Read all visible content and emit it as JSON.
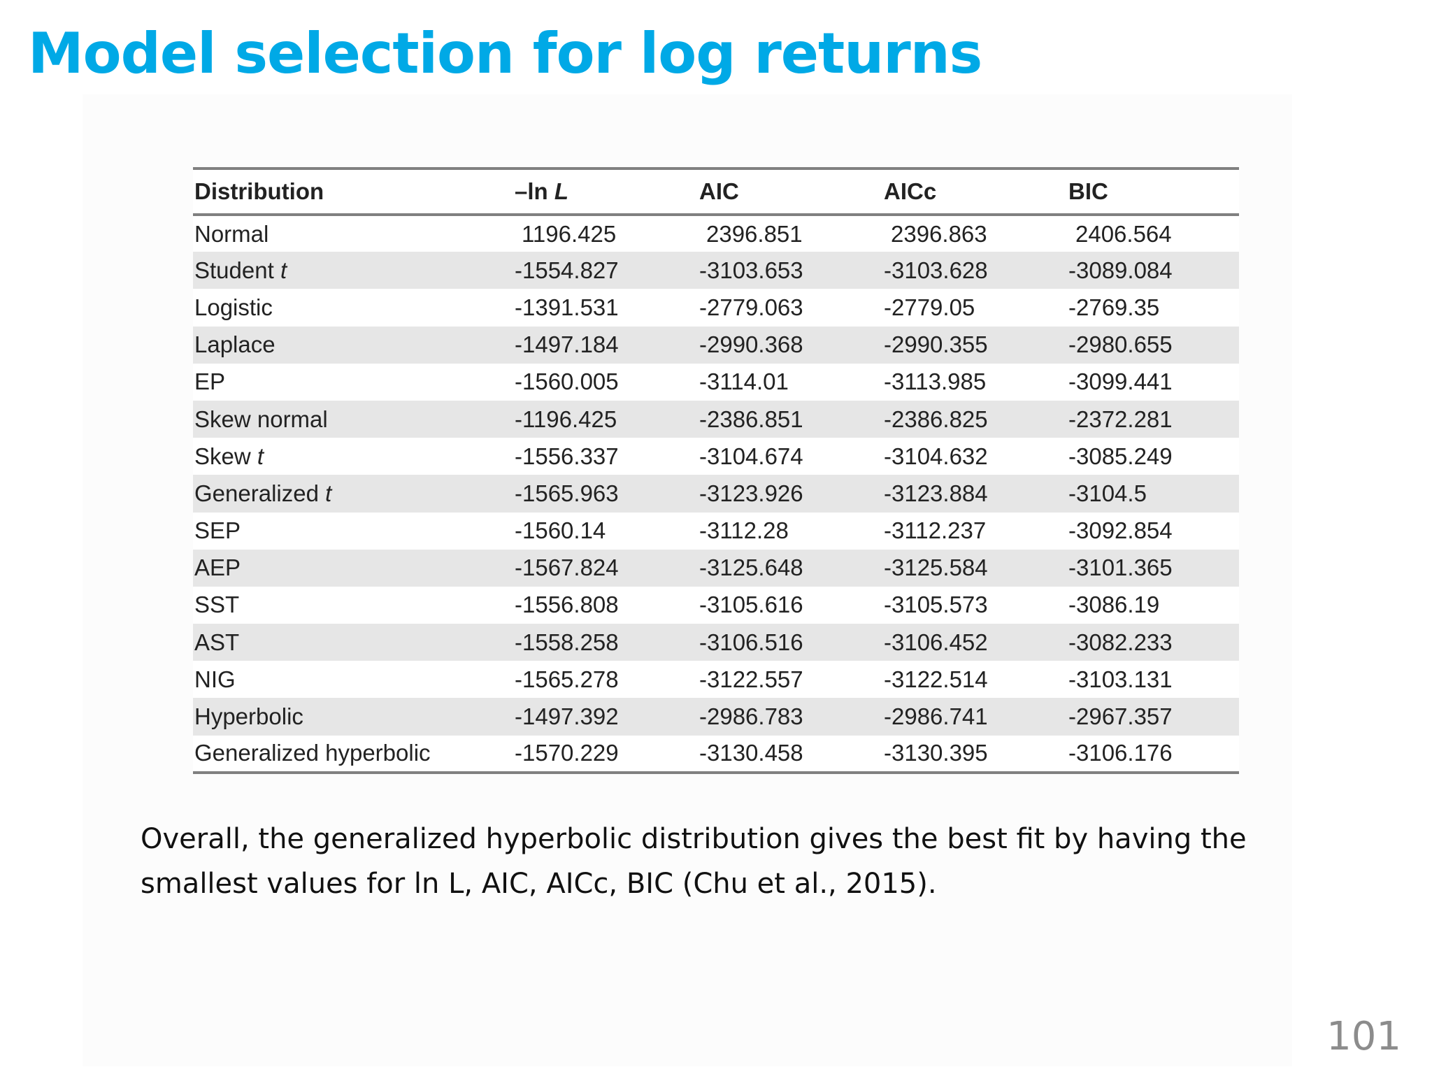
{
  "slide": {
    "title": "Model selection for log returns",
    "caption": "Overall, the generalized hyperbolic distribution gives the best fit by having the smallest values for ln L, AIC, AICc, BIC (Chu et al., 2015).",
    "page_number": "101"
  },
  "table": {
    "headers": {
      "distribution": "Distribution",
      "lnl_prefix": "–ln ",
      "lnl_symbol": "L",
      "aic": "AIC",
      "aicc": "AICc",
      "bic": "BIC"
    },
    "rows": [
      {
        "name": "Normal",
        "suffix": "",
        "lnl": "1196.425",
        "aic": "2396.851",
        "aicc": "2396.863",
        "bic": "2406.564"
      },
      {
        "name": "Student ",
        "suffix": "t",
        "lnl": "-1554.827",
        "aic": "-3103.653",
        "aicc": "-3103.628",
        "bic": "-3089.084"
      },
      {
        "name": "Logistic",
        "suffix": "",
        "lnl": "-1391.531",
        "aic": "-2779.063",
        "aicc": "-2779.05",
        "bic": "-2769.35"
      },
      {
        "name": "Laplace",
        "suffix": "",
        "lnl": "-1497.184",
        "aic": "-2990.368",
        "aicc": "-2990.355",
        "bic": "-2980.655"
      },
      {
        "name": "EP",
        "suffix": "",
        "lnl": "-1560.005",
        "aic": "-3114.01",
        "aicc": "-3113.985",
        "bic": "-3099.441"
      },
      {
        "name": "Skew normal",
        "suffix": "",
        "lnl": "-1196.425",
        "aic": "-2386.851",
        "aicc": "-2386.825",
        "bic": "-2372.281"
      },
      {
        "name": "Skew ",
        "suffix": "t",
        "lnl": "-1556.337",
        "aic": "-3104.674",
        "aicc": "-3104.632",
        "bic": "-3085.249"
      },
      {
        "name": "Generalized ",
        "suffix": "t",
        "lnl": "-1565.963",
        "aic": "-3123.926",
        "aicc": "-3123.884",
        "bic": "-3104.5"
      },
      {
        "name": "SEP",
        "suffix": "",
        "lnl": "-1560.14",
        "aic": "-3112.28",
        "aicc": "-3112.237",
        "bic": "-3092.854"
      },
      {
        "name": "AEP",
        "suffix": "",
        "lnl": "-1567.824",
        "aic": "-3125.648",
        "aicc": "-3125.584",
        "bic": "-3101.365"
      },
      {
        "name": "SST",
        "suffix": "",
        "lnl": "-1556.808",
        "aic": "-3105.616",
        "aicc": "-3105.573",
        "bic": "-3086.19"
      },
      {
        "name": "AST",
        "suffix": "",
        "lnl": "-1558.258",
        "aic": "-3106.516",
        "aicc": "-3106.452",
        "bic": "-3082.233"
      },
      {
        "name": "NIG",
        "suffix": "",
        "lnl": "-1565.278",
        "aic": "-3122.557",
        "aicc": "-3122.514",
        "bic": "-3103.131"
      },
      {
        "name": "Hyperbolic",
        "suffix": "",
        "lnl": "-1497.392",
        "aic": "-2986.783",
        "aicc": "-2986.741",
        "bic": "-2967.357"
      },
      {
        "name": "Generalized hyperbolic",
        "suffix": "",
        "lnl": "-1570.229",
        "aic": "-3130.458",
        "aicc": "-3130.395",
        "bic": "-3106.176"
      }
    ]
  }
}
